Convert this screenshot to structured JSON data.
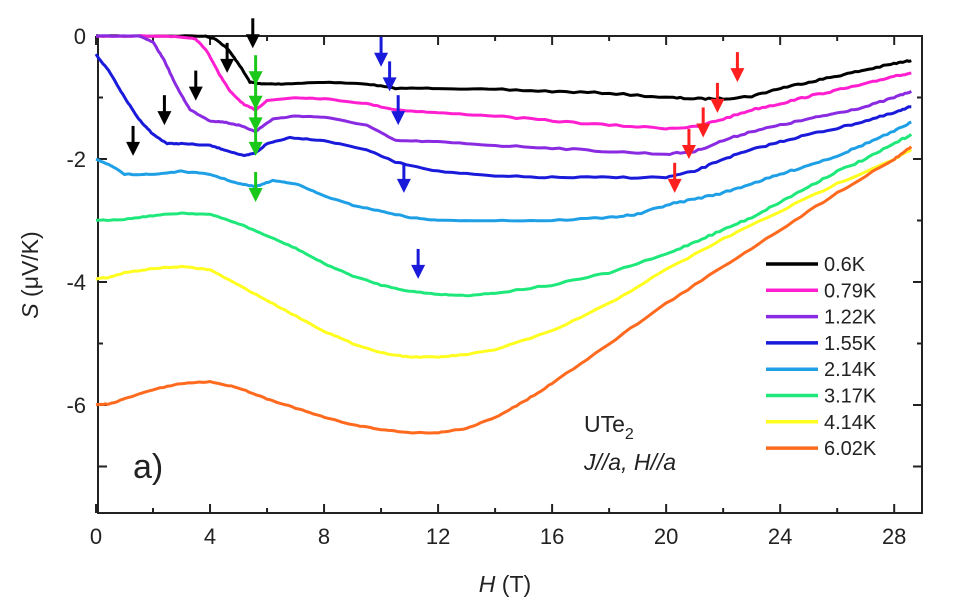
{
  "chart_data": {
    "type": "line",
    "title": "",
    "xlabel_italic": "H",
    "xlabel_unit": " (T)",
    "ylabel_italic": "S",
    "ylabel_unit": " (μV/K)",
    "xlim": [
      0,
      29
    ],
    "ylim": [
      -7.8,
      0
    ],
    "x_ticks": [
      0,
      4,
      8,
      12,
      16,
      20,
      24,
      28
    ],
    "x_tick_labels": [
      "0",
      "4",
      "8",
      "12",
      "16",
      "20",
      "24",
      "28"
    ],
    "y_ticks": [
      0,
      -2,
      -4,
      -6
    ],
    "y_tick_labels": [
      "0",
      "-2",
      "-4",
      "-6"
    ],
    "grid": false,
    "legend_position": "bottom-right",
    "panel_label": "a)",
    "annotation_line1_main": "UTe",
    "annotation_line1_sub": "2",
    "annotation_line2": "J//a, H//a",
    "series": [
      {
        "name": "0.6K",
        "color": "#000000",
        "x": [
          0,
          2,
          3.8,
          4.2,
          4.6,
          5,
          5.4,
          5.8,
          6.5,
          8,
          9.5,
          10.5,
          12,
          14,
          16,
          18,
          20,
          21,
          22,
          23,
          24,
          25,
          26,
          27,
          28,
          28.6
        ],
        "y": [
          0,
          0,
          0,
          -0.05,
          -0.2,
          -0.45,
          -0.75,
          -0.78,
          -0.78,
          -0.75,
          -0.78,
          -0.85,
          -0.85,
          -0.87,
          -0.9,
          -0.93,
          -1.0,
          -1.02,
          -1.02,
          -0.98,
          -0.85,
          -0.75,
          -0.65,
          -0.55,
          -0.45,
          -0.4
        ]
      },
      {
        "name": "0.79K",
        "color": "#ff1fd0",
        "x": [
          0,
          2.5,
          3.5,
          3.9,
          4.3,
          4.7,
          5.2,
          5.6,
          6,
          7,
          8,
          9.5,
          10.5,
          12,
          14,
          16,
          18,
          20,
          21,
          22,
          23,
          24,
          25,
          26,
          27,
          28,
          28.6
        ],
        "y": [
          0,
          0,
          -0.05,
          -0.25,
          -0.6,
          -0.9,
          -1.12,
          -1.2,
          -1.05,
          -1.0,
          -1.02,
          -1.1,
          -1.2,
          -1.25,
          -1.3,
          -1.38,
          -1.45,
          -1.5,
          -1.48,
          -1.35,
          -1.2,
          -1.1,
          -0.98,
          -0.88,
          -0.78,
          -0.65,
          -0.6
        ]
      },
      {
        "name": "1.22K",
        "color": "#8a2be2",
        "x": [
          0,
          1.5,
          2,
          2.4,
          2.8,
          3.3,
          4,
          4.5,
          5,
          5.6,
          6.2,
          7,
          8,
          9.5,
          10.5,
          12,
          14,
          16,
          18,
          20,
          21,
          22,
          23,
          24,
          25,
          26,
          27,
          28,
          28.6
        ],
        "y": [
          0,
          0,
          -0.1,
          -0.4,
          -0.8,
          -1.2,
          -1.38,
          -1.4,
          -1.45,
          -1.55,
          -1.35,
          -1.3,
          -1.32,
          -1.45,
          -1.7,
          -1.72,
          -1.78,
          -1.82,
          -1.88,
          -1.92,
          -1.88,
          -1.7,
          -1.55,
          -1.45,
          -1.35,
          -1.25,
          -1.15,
          -1.0,
          -0.9
        ]
      },
      {
        "name": "1.55K",
        "color": "#1a1adb",
        "x": [
          0,
          0.5,
          1,
          1.5,
          2,
          2.5,
          3,
          4,
          4.5,
          5.2,
          5.6,
          6,
          6.8,
          8,
          9.5,
          10.5,
          12,
          14,
          16,
          18,
          20,
          21,
          22,
          23,
          24,
          25,
          26,
          27,
          28,
          28.6
        ],
        "y": [
          -0.3,
          -0.6,
          -1.0,
          -1.35,
          -1.6,
          -1.75,
          -1.75,
          -1.78,
          -1.85,
          -1.95,
          -1.9,
          -1.75,
          -1.65,
          -1.7,
          -1.85,
          -2.05,
          -2.2,
          -2.28,
          -2.3,
          -2.3,
          -2.3,
          -2.2,
          -2.0,
          -1.85,
          -1.72,
          -1.6,
          -1.5,
          -1.38,
          -1.25,
          -1.15
        ]
      },
      {
        "name": "2.14K",
        "color": "#1fa0e6",
        "x": [
          0,
          0.5,
          1,
          1.5,
          2,
          3,
          4,
          5,
          5.6,
          6.2,
          7,
          8,
          9,
          10,
          11,
          12,
          14,
          16,
          18,
          19,
          20,
          21,
          22,
          23,
          24,
          25,
          26,
          27,
          28,
          28.6
        ],
        "y": [
          -2.0,
          -2.1,
          -2.25,
          -2.25,
          -2.25,
          -2.2,
          -2.25,
          -2.4,
          -2.45,
          -2.35,
          -2.4,
          -2.6,
          -2.75,
          -2.85,
          -2.95,
          -3.0,
          -3.0,
          -3.0,
          -2.95,
          -2.9,
          -2.75,
          -2.65,
          -2.55,
          -2.4,
          -2.25,
          -2.1,
          -1.95,
          -1.75,
          -1.55,
          -1.4
        ]
      },
      {
        "name": "3.17K",
        "color": "#1fe87a",
        "x": [
          0,
          1,
          2,
          3,
          4,
          5,
          6,
          7,
          8,
          9,
          10,
          11,
          12,
          13,
          14,
          16,
          18,
          20,
          21,
          22,
          23,
          24,
          25,
          26,
          27,
          28,
          28.6
        ],
        "y": [
          -3.0,
          -2.98,
          -2.92,
          -2.88,
          -2.9,
          -3.05,
          -3.25,
          -3.45,
          -3.7,
          -3.9,
          -4.05,
          -4.15,
          -4.2,
          -4.22,
          -4.18,
          -4.05,
          -3.85,
          -3.55,
          -3.35,
          -3.15,
          -2.95,
          -2.7,
          -2.45,
          -2.2,
          -2.0,
          -1.75,
          -1.6
        ]
      },
      {
        "name": "4.14K",
        "color": "#ffff1f",
        "x": [
          0,
          0.5,
          1,
          2,
          3,
          4,
          5,
          6,
          7,
          8,
          9,
          10,
          11,
          12,
          13,
          14,
          16,
          18,
          20,
          22,
          24,
          26,
          28,
          28.6
        ],
        "y": [
          -3.95,
          -3.92,
          -3.85,
          -3.78,
          -3.75,
          -3.8,
          -4.05,
          -4.3,
          -4.55,
          -4.8,
          -5.0,
          -5.15,
          -5.22,
          -5.22,
          -5.18,
          -5.1,
          -4.8,
          -4.35,
          -3.8,
          -3.3,
          -2.85,
          -2.4,
          -2.0,
          -1.85
        ]
      },
      {
        "name": "6.02K",
        "color": "#ff6a1f",
        "x": [
          0,
          0.5,
          1,
          2,
          3,
          4,
          5,
          6,
          7,
          8,
          9,
          10,
          11,
          12,
          13,
          14,
          15,
          16,
          18,
          20,
          22,
          24,
          26,
          28,
          28.6
        ],
        "y": [
          -6.0,
          -5.98,
          -5.9,
          -5.75,
          -5.65,
          -5.62,
          -5.72,
          -5.9,
          -6.05,
          -6.2,
          -6.32,
          -6.4,
          -6.45,
          -6.45,
          -6.38,
          -6.2,
          -5.95,
          -5.65,
          -5.0,
          -4.35,
          -3.75,
          -3.15,
          -2.55,
          -2.0,
          -1.8
        ]
      }
    ],
    "arrows": [
      {
        "color": "#000000",
        "x": 1.3,
        "y": -1.95
      },
      {
        "color": "#000000",
        "x": 2.4,
        "y": -1.45
      },
      {
        "color": "#000000",
        "x": 3.5,
        "y": -1.05
      },
      {
        "color": "#000000",
        "x": 4.6,
        "y": -0.6
      },
      {
        "color": "#000000",
        "x": 5.5,
        "y": -0.2
      },
      {
        "color": "#19c819",
        "x": 5.6,
        "y": -0.8
      },
      {
        "color": "#19c819",
        "x": 5.6,
        "y": -1.2
      },
      {
        "color": "#19c819",
        "x": 5.6,
        "y": -1.55
      },
      {
        "color": "#19c819",
        "x": 5.6,
        "y": -1.95
      },
      {
        "color": "#19c819",
        "x": 5.6,
        "y": -2.7
      },
      {
        "color": "#1a1adb",
        "x": 10.0,
        "y": -0.5
      },
      {
        "color": "#1a1adb",
        "x": 10.3,
        "y": -0.9
      },
      {
        "color": "#1a1adb",
        "x": 10.6,
        "y": -1.45
      },
      {
        "color": "#1a1adb",
        "x": 10.8,
        "y": -2.55
      },
      {
        "color": "#1a1adb",
        "x": 11.3,
        "y": -3.95
      },
      {
        "color": "#ff1f1f",
        "x": 20.3,
        "y": -2.55
      },
      {
        "color": "#ff1f1f",
        "x": 20.8,
        "y": -2.0
      },
      {
        "color": "#ff1f1f",
        "x": 21.3,
        "y": -1.65
      },
      {
        "color": "#ff1f1f",
        "x": 21.8,
        "y": -1.25
      },
      {
        "color": "#ff1f1f",
        "x": 22.5,
        "y": -0.75
      }
    ]
  }
}
